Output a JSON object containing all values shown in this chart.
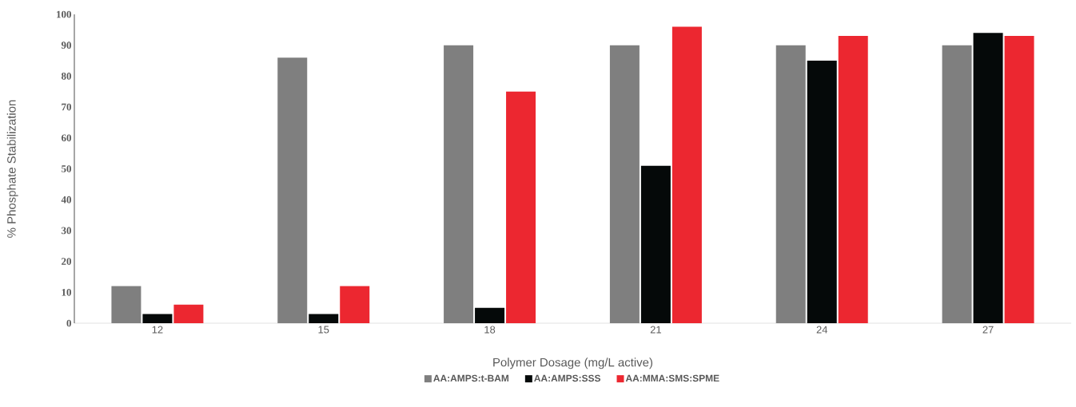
{
  "chart_data": {
    "type": "bar",
    "xlabel": "Polymer Dosage (mg/L active)",
    "ylabel": "% Phosphate Stabilization",
    "categories": [
      "12",
      "15",
      "18",
      "21",
      "24",
      "27"
    ],
    "series": [
      {
        "name": "AA:AMPS:t-BAM",
        "color": "#7f7f7f",
        "values": [
          12,
          86,
          90,
          90,
          90,
          90
        ]
      },
      {
        "name": "AA:AMPS:SSS",
        "color": "#050909",
        "values": [
          3,
          3,
          5,
          51,
          85,
          94
        ]
      },
      {
        "name": "AA:MMA:SMS:SPME",
        "color": "#ec2730",
        "values": [
          6,
          12,
          75,
          96,
          93,
          93
        ]
      }
    ],
    "ylim": [
      0,
      100
    ],
    "yticks": [
      0,
      10,
      20,
      30,
      40,
      50,
      60,
      70,
      80,
      90,
      100
    ],
    "legend": "bottom"
  }
}
